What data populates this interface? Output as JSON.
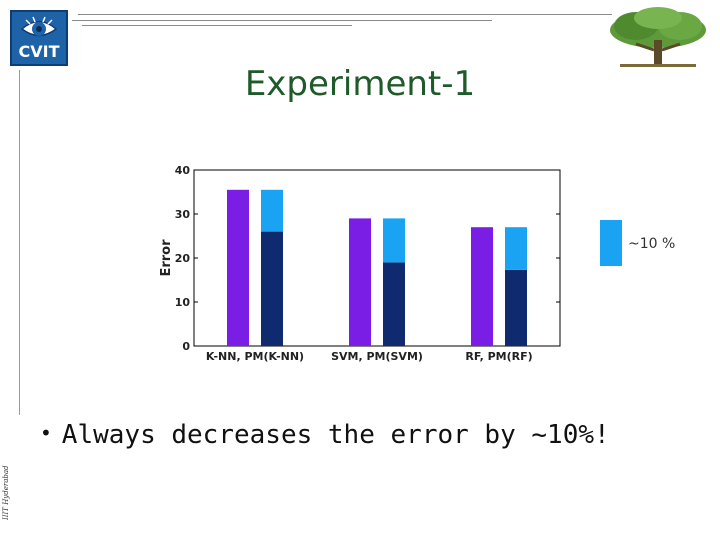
{
  "header": {
    "logo_text": "CVIT",
    "title": "Experiment-1"
  },
  "side_label": "IIIT Hyderabad",
  "legend": {
    "label": "~10 %",
    "color": "#1aa3f2"
  },
  "bullet": {
    "text": "Always decreases the error by ~10%!"
  },
  "colors": {
    "title": "#1f5a2b",
    "baseline": "#7a1ee6",
    "pm_error": "#0f2a6e",
    "pm_reduction": "#1aa3f2"
  },
  "chart_data": {
    "type": "bar",
    "categories": [
      "K-NN, PM(K-NN)",
      "SVM, PM(SVM)",
      "RF, PM(RF)"
    ],
    "series": [
      {
        "name": "",
        "values": [
          35.5,
          29,
          27
        ]
      },
      {
        "name": "",
        "values": [
          26,
          19,
          17.3
        ]
      },
      {
        "name": "~10 %",
        "values": [
          9.5,
          10,
          9.7
        ]
      }
    ],
    "stacked_series": [
      1,
      2
    ],
    "title": "",
    "xlabel": "",
    "ylabel": "Error",
    "ylim": [
      0,
      40
    ],
    "yticks": [
      0,
      10,
      20,
      30,
      40
    ],
    "grid": false
  }
}
